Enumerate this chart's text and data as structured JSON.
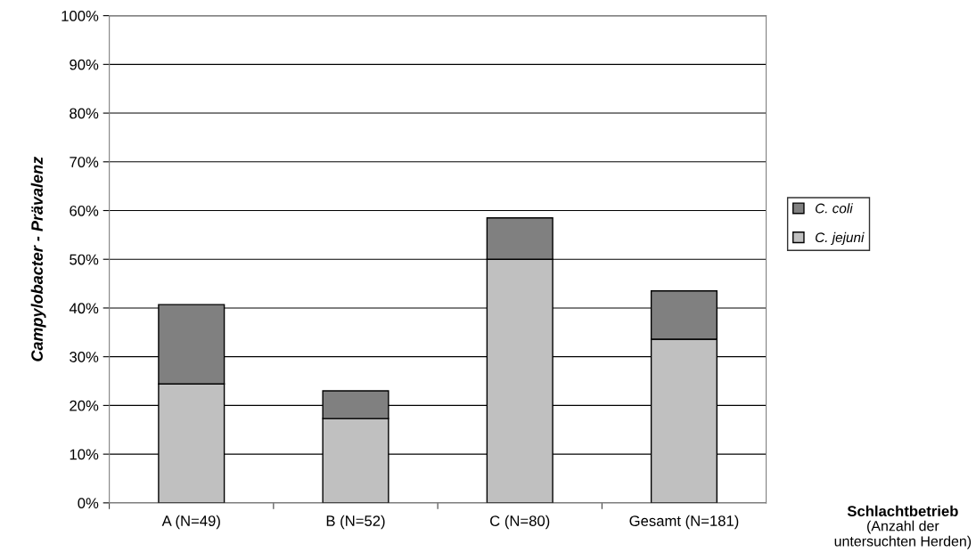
{
  "chart_data": {
    "type": "bar",
    "stacked": true,
    "categories": [
      "A (N=49)",
      "B (N=52)",
      "C (N=80)",
      "Gesamt (N=181)"
    ],
    "series": [
      {
        "name": "C. jejuni",
        "color": "#c0c0c0",
        "values": [
          24.4,
          17.3,
          50.0,
          33.6
        ]
      },
      {
        "name": "C. coli",
        "color": "#808080",
        "values": [
          16.3,
          5.7,
          8.5,
          9.9
        ]
      }
    ],
    "ylabel": "Campylobacter - Prävalenz",
    "xlabel": "Schlachtbetrieb\n(Anzahl der\nuntersuchten Herden)",
    "ylim": [
      0,
      100
    ],
    "yticks": [
      {
        "value": 0,
        "label": "0%"
      },
      {
        "value": 10,
        "label": "10%"
      },
      {
        "value": 20,
        "label": "20%"
      },
      {
        "value": 30,
        "label": "30%"
      },
      {
        "value": 40,
        "label": "40%"
      },
      {
        "value": 50,
        "label": "50%"
      },
      {
        "value": 60,
        "label": "60%"
      },
      {
        "value": 70,
        "label": "70%"
      },
      {
        "value": 80,
        "label": "80%"
      },
      {
        "value": 90,
        "label": "90%"
      },
      {
        "value": 100,
        "label": "100%"
      }
    ],
    "grid": "y",
    "legend": "right"
  }
}
